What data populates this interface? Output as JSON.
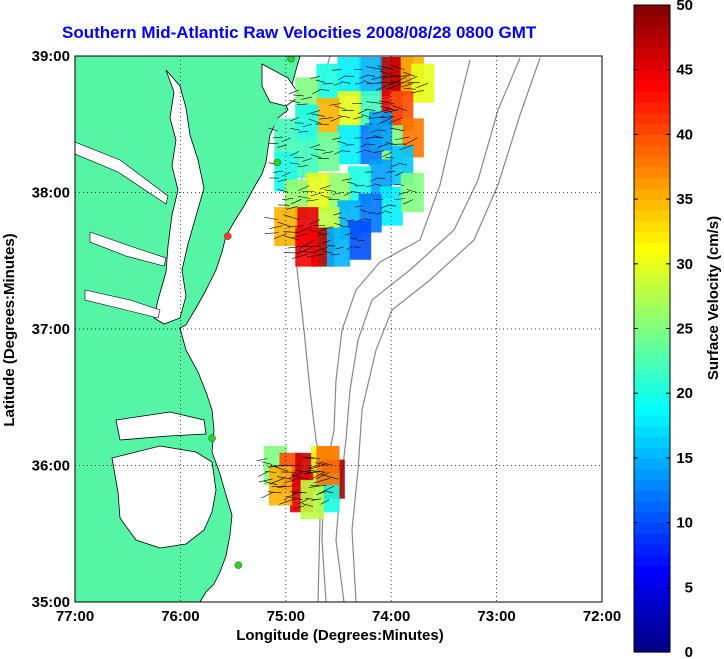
{
  "title": "Southern Mid-Atlantic Raw Velocities 2008/08/28 0800 GMT",
  "map": {
    "xlabel": "Longitude (Degrees:Minutes)",
    "ylabel": "Latitude (Degrees:Minutes)",
    "lon_range": [
      -77,
      -72
    ],
    "lat_range": [
      35,
      39
    ],
    "lon_ticks": [
      {
        "value": -77,
        "label": "77:00"
      },
      {
        "value": -76,
        "label": "76:00"
      },
      {
        "value": -75,
        "label": "75:00"
      },
      {
        "value": -74,
        "label": "74:00"
      },
      {
        "value": -73,
        "label": "73:00"
      },
      {
        "value": -72,
        "label": "72:00"
      }
    ],
    "lat_ticks": [
      {
        "value": 39,
        "label": "39:00"
      },
      {
        "value": 38,
        "label": "38:00"
      },
      {
        "value": 37,
        "label": "37:00"
      },
      {
        "value": 36,
        "label": "36:00"
      },
      {
        "value": 35,
        "label": "35:00"
      }
    ],
    "grid": "dotted",
    "land_color": "#55f5a5",
    "water_color": "#ffffff",
    "stations": [
      {
        "lon": -74.95,
        "lat": 38.98,
        "color": "#33cc33"
      },
      {
        "lon": -75.08,
        "lat": 38.22,
        "color": "#33cc33"
      },
      {
        "lon": -75.55,
        "lat": 37.68,
        "color": "#ff3333"
      },
      {
        "lon": -75.7,
        "lat": 36.2,
        "color": "#33cc33"
      },
      {
        "lon": -75.45,
        "lat": 35.27,
        "color": "#33cc33"
      }
    ]
  },
  "colorbar": {
    "label": "Surface Velocity (cm/s)",
    "range": [
      0,
      50
    ],
    "ticks": [
      "0",
      "5",
      "10",
      "15",
      "20",
      "25",
      "30",
      "35",
      "40",
      "45",
      "50"
    ],
    "colormap": "jet"
  },
  "chart_data": {
    "type": "heatmap",
    "title": "Southern Mid-Atlantic Raw Velocities 2008/08/28 0800 GMT",
    "xlabel": "Longitude (Degrees:Minutes)",
    "ylabel": "Latitude (Degrees:Minutes)",
    "value_label": "Surface Velocity (cm/s)",
    "value_range": [
      0,
      50
    ],
    "regions": [
      {
        "name_visible": false,
        "cells": [
          [
            -74.0,
            38.85,
            48
          ],
          [
            -73.9,
            38.85,
            46
          ],
          [
            -73.8,
            38.85,
            35
          ],
          [
            -73.7,
            38.8,
            30
          ],
          [
            -74.2,
            38.85,
            15
          ],
          [
            -74.4,
            38.85,
            18
          ],
          [
            -74.6,
            38.8,
            20
          ],
          [
            -74.8,
            38.7,
            25
          ],
          [
            -74.0,
            38.6,
            45
          ],
          [
            -73.9,
            38.6,
            40
          ],
          [
            -74.2,
            38.6,
            22
          ],
          [
            -74.4,
            38.6,
            30
          ],
          [
            -74.6,
            38.55,
            35
          ],
          [
            -74.8,
            38.5,
            20
          ],
          [
            -75.0,
            38.4,
            22
          ],
          [
            -73.8,
            38.4,
            38
          ],
          [
            -74.0,
            38.35,
            25
          ],
          [
            -74.2,
            38.35,
            12
          ],
          [
            -74.4,
            38.35,
            18
          ],
          [
            -74.6,
            38.3,
            24
          ],
          [
            -74.8,
            38.25,
            22
          ],
          [
            -75.0,
            38.15,
            20
          ],
          [
            -73.9,
            38.2,
            16
          ],
          [
            -74.1,
            38.1,
            14
          ],
          [
            -74.3,
            38.05,
            20
          ],
          [
            -74.5,
            38.0,
            26
          ],
          [
            -74.7,
            38.0,
            30
          ],
          [
            -74.9,
            37.95,
            26
          ],
          [
            -74.0,
            37.9,
            18
          ],
          [
            -74.2,
            37.85,
            12
          ],
          [
            -74.4,
            37.8,
            15
          ],
          [
            -74.6,
            37.75,
            28
          ],
          [
            -74.8,
            37.75,
            45
          ],
          [
            -75.0,
            37.75,
            35
          ],
          [
            -74.65,
            37.6,
            48
          ],
          [
            -74.8,
            37.6,
            44
          ],
          [
            -74.3,
            37.65,
            10
          ],
          [
            -74.5,
            37.6,
            15
          ],
          [
            -73.8,
            38.0,
            25
          ],
          [
            -74.1,
            38.45,
            14
          ]
        ]
      },
      {
        "name_visible": false,
        "cells": [
          [
            -75.1,
            36.0,
            25
          ],
          [
            -74.95,
            35.95,
            40
          ],
          [
            -74.8,
            35.95,
            46
          ],
          [
            -74.65,
            36.0,
            30
          ],
          [
            -74.55,
            35.9,
            48
          ],
          [
            -74.6,
            35.8,
            20
          ],
          [
            -74.85,
            35.8,
            45
          ],
          [
            -75.05,
            35.85,
            35
          ],
          [
            -74.75,
            35.75,
            28
          ],
          [
            -74.6,
            36.0,
            38
          ]
        ]
      }
    ]
  }
}
